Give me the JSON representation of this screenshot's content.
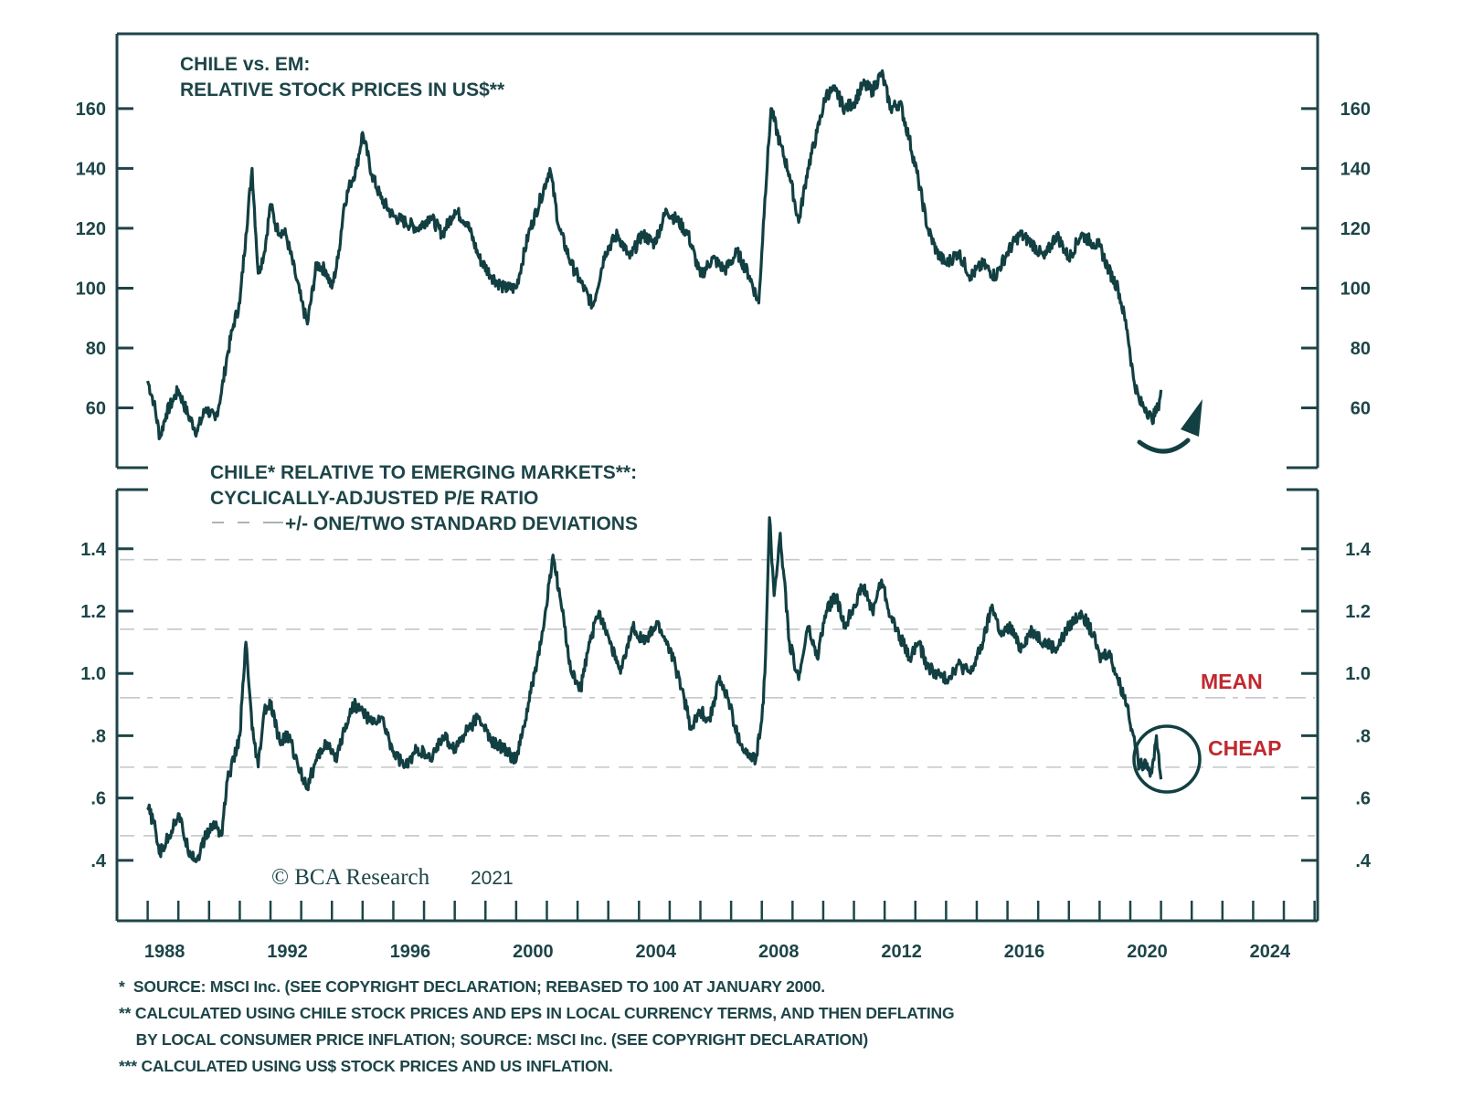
{
  "chart_data": [
    {
      "type": "line",
      "panel": "top",
      "title": "CHILE vs. EM:",
      "subtitle": "RELATIVE STOCK PRICES IN US$**",
      "xlabel": "",
      "ylabel": "",
      "xlim": [
        1987.0,
        2026.1
      ],
      "ylim": [
        40,
        185
      ],
      "yticks": [
        60,
        80,
        100,
        120,
        140,
        160
      ],
      "ytick_labels": [
        "60",
        "80",
        "100",
        "120",
        "140",
        "160"
      ],
      "y_axis_sides": [
        "left",
        "right"
      ],
      "grid": false,
      "legend": "none",
      "series": [
        {
          "name": "Chile vs. EM relative stock prices (US$)",
          "x": [
            1988.0,
            1988.2,
            1988.4,
            1988.6,
            1988.8,
            1989.0,
            1989.3,
            1989.6,
            1989.9,
            1990.2,
            1990.4,
            1990.6,
            1990.8,
            1991.0,
            1991.2,
            1991.4,
            1991.6,
            1991.8,
            1992.0,
            1992.2,
            1992.5,
            1992.8,
            1993.0,
            1993.2,
            1993.5,
            1993.8,
            1994.0,
            1994.2,
            1994.4,
            1994.6,
            1994.8,
            1995.0,
            1995.3,
            1995.6,
            1996.0,
            1996.4,
            1996.8,
            1997.2,
            1997.6,
            1998.0,
            1998.4,
            1998.8,
            1999.2,
            1999.6,
            2000.0,
            2000.4,
            2000.8,
            2001.1,
            2001.4,
            2001.8,
            2002.1,
            2002.5,
            2002.9,
            2003.3,
            2003.7,
            2004.1,
            2004.5,
            2004.9,
            2005.3,
            2005.6,
            2006.0,
            2006.4,
            2006.8,
            2007.2,
            2007.6,
            2007.9,
            2008.1,
            2008.3,
            2008.6,
            2008.9,
            2009.2,
            2009.5,
            2009.8,
            2010.1,
            2010.4,
            2010.7,
            2011.0,
            2011.3,
            2011.6,
            2011.9,
            2012.2,
            2012.5,
            2012.8,
            2013.1,
            2013.4,
            2013.7,
            2014.0,
            2014.4,
            2014.8,
            2015.2,
            2015.6,
            2016.0,
            2016.4,
            2016.8,
            2017.2,
            2017.6,
            2018.0,
            2018.4,
            2018.8,
            2019.0,
            2019.3,
            2019.6,
            2019.9,
            2020.1,
            2020.3,
            2020.5,
            2020.7,
            2020.9,
            2021.0
          ],
          "y": [
            69,
            62,
            50,
            58,
            62,
            66,
            58,
            52,
            60,
            56,
            65,
            78,
            88,
            95,
            118,
            140,
            105,
            112,
            128,
            120,
            118,
            105,
            96,
            88,
            108,
            106,
            100,
            110,
            128,
            135,
            140,
            152,
            138,
            130,
            124,
            122,
            120,
            124,
            118,
            126,
            122,
            110,
            104,
            100,
            100,
            118,
            130,
            140,
            120,
            108,
            102,
            94,
            112,
            118,
            110,
            118,
            115,
            126,
            122,
            118,
            104,
            110,
            106,
            112,
            104,
            95,
            130,
            160,
            148,
            138,
            122,
            140,
            152,
            165,
            166,
            160,
            162,
            168,
            166,
            172,
            160,
            162,
            150,
            136,
            120,
            112,
            108,
            112,
            104,
            108,
            104,
            112,
            118,
            115,
            110,
            118,
            110,
            118,
            115,
            114,
            106,
            100,
            86,
            70,
            62,
            60,
            56,
            60,
            66
          ]
        }
      ],
      "annotations": [
        {
          "type": "curved-arrow",
          "direction": "up",
          "near": "2020-2021",
          "meaning": "expected rebound"
        }
      ]
    },
    {
      "type": "line",
      "panel": "bottom",
      "title": "CHILE* RELATIVE TO EMERGING MARKETS**:",
      "subtitle": "CYCLICALLY-ADJUSTED P/E RATIO",
      "legend_text": "+/- ONE/TWO STANDARD DEVIATIONS",
      "xlabel": "",
      "ylabel": "",
      "xlim": [
        1987.0,
        2026.1
      ],
      "ylim": [
        0.206,
        1.59
      ],
      "yticks": [
        0.4,
        0.6,
        0.8,
        1.0,
        1.2,
        1.4
      ],
      "ytick_labels": [
        ".4",
        ".6",
        ".8",
        "1.0",
        "1.2",
        "1.4"
      ],
      "y_axis_sides": [
        "left",
        "right"
      ],
      "grid": false,
      "legend": "top-left",
      "reference_lines": [
        {
          "name": "+2 SD",
          "value": 1.365,
          "style": "dashed"
        },
        {
          "name": "+1 SD",
          "value": 1.142,
          "style": "dashed"
        },
        {
          "name": "mean",
          "value": 0.922,
          "style": "dash-dot",
          "label": "MEAN"
        },
        {
          "name": "-1 SD",
          "value": 0.699,
          "style": "dashed"
        },
        {
          "name": "-2 SD",
          "value": 0.479,
          "style": "dashed"
        }
      ],
      "series": [
        {
          "name": "Chile relative to EM cyclically-adjusted P/E",
          "x": [
            1988.0,
            1988.2,
            1988.4,
            1988.7,
            1989.0,
            1989.3,
            1989.6,
            1989.9,
            1990.2,
            1990.4,
            1990.6,
            1990.8,
            1991.0,
            1991.2,
            1991.4,
            1991.6,
            1991.8,
            1992.0,
            1992.3,
            1992.6,
            1992.9,
            1993.2,
            1993.5,
            1993.8,
            1994.1,
            1994.4,
            1994.7,
            1995.0,
            1995.3,
            1995.6,
            1996.0,
            1996.4,
            1996.8,
            1997.2,
            1997.6,
            1998.0,
            1998.4,
            1998.8,
            1999.2,
            1999.6,
            2000.0,
            2000.3,
            2000.6,
            2000.9,
            2001.2,
            2001.5,
            2001.8,
            2002.1,
            2002.4,
            2002.7,
            2003.0,
            2003.4,
            2003.8,
            2004.2,
            2004.6,
            2005.0,
            2005.4,
            2005.7,
            2006.0,
            2006.3,
            2006.6,
            2006.9,
            2007.2,
            2007.5,
            2007.8,
            2008.0,
            2008.1,
            2008.25,
            2008.4,
            2008.6,
            2008.9,
            2009.2,
            2009.5,
            2009.8,
            2010.1,
            2010.4,
            2010.7,
            2011.0,
            2011.3,
            2011.6,
            2011.9,
            2012.2,
            2012.5,
            2012.8,
            2013.1,
            2013.4,
            2013.7,
            2014.0,
            2014.4,
            2014.8,
            2015.2,
            2015.5,
            2015.8,
            2016.1,
            2016.4,
            2016.8,
            2017.2,
            2017.6,
            2018.0,
            2018.4,
            2018.8,
            2019.0,
            2019.3,
            2019.6,
            2019.9,
            2020.1,
            2020.3,
            2020.5,
            2020.7,
            2020.85,
            2021.0
          ],
          "y": [
            0.57,
            0.52,
            0.42,
            0.48,
            0.55,
            0.44,
            0.4,
            0.48,
            0.52,
            0.48,
            0.66,
            0.72,
            0.8,
            1.1,
            0.82,
            0.7,
            0.88,
            0.9,
            0.78,
            0.8,
            0.7,
            0.64,
            0.72,
            0.78,
            0.72,
            0.82,
            0.9,
            0.88,
            0.84,
            0.86,
            0.75,
            0.7,
            0.76,
            0.72,
            0.8,
            0.76,
            0.82,
            0.86,
            0.78,
            0.76,
            0.72,
            0.85,
            1.0,
            1.15,
            1.38,
            1.2,
            1.0,
            0.95,
            1.1,
            1.2,
            1.12,
            1.0,
            1.15,
            1.1,
            1.16,
            1.08,
            0.95,
            0.82,
            0.88,
            0.85,
            0.98,
            0.92,
            0.8,
            0.74,
            0.72,
            0.85,
            1.0,
            1.5,
            1.25,
            1.45,
            1.1,
            0.98,
            1.15,
            1.05,
            1.2,
            1.25,
            1.15,
            1.22,
            1.28,
            1.2,
            1.3,
            1.18,
            1.12,
            1.05,
            1.1,
            1.02,
            1.0,
            0.98,
            1.03,
            1.0,
            1.1,
            1.22,
            1.12,
            1.15,
            1.08,
            1.14,
            1.1,
            1.08,
            1.15,
            1.2,
            1.12,
            1.05,
            1.07,
            0.98,
            0.9,
            0.8,
            0.7,
            0.72,
            0.68,
            0.8,
            0.66
          ]
        }
      ],
      "annotations": [
        {
          "text": "MEAN",
          "color": "#c0282f",
          "anchor_value": 0.98,
          "anchor_year": 2022.3
        },
        {
          "text": "CHEAP",
          "color": "#c0282f",
          "anchor_value": 0.78,
          "anchor_year": 2022.6
        },
        {
          "type": "circle",
          "around": "2020-2021 trough"
        }
      ]
    }
  ],
  "x_axis": {
    "tick_labels": [
      "1988",
      "1992",
      "1996",
      "2000",
      "2004",
      "2008",
      "2012",
      "2016",
      "2020",
      "2024"
    ],
    "label_years": [
      1988,
      1992,
      1996,
      2000,
      2004,
      2008,
      2012,
      2016,
      2020,
      2024
    ],
    "minor_tick_every_years": 1
  },
  "copyright": {
    "symbol": "©",
    "brand": "BCA Research",
    "year": "2021"
  },
  "footnotes": [
    "*  SOURCE: MSCI Inc. (SEE COPYRIGHT DECLARATION; REBASED TO 100 AT JANUARY 2000.",
    "** CALCULATED USING CHILE STOCK PRICES AND EPS IN LOCAL CURRENCY TERMS, AND THEN DEFLATING",
    "    BY LOCAL CONSUMER PRICE INFLATION; SOURCE: MSCI Inc. (SEE COPYRIGHT DECLARATION)",
    "*** CALCULATED USING US$ STOCK PRICES AND US INFLATION."
  ],
  "colors": {
    "line": "#123f42",
    "axis": "#1d4548",
    "reference_line": "#c3c8c8",
    "annotation_red": "#c0282f"
  }
}
